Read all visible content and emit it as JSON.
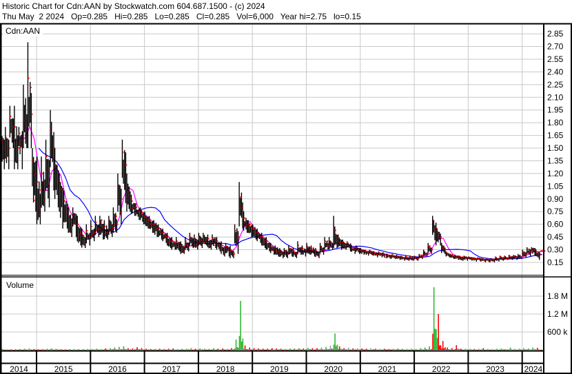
{
  "header": {
    "line1": "Historic Chart for Cdn:AAN by Stockwatch.com 604.687.1500 - (c) 2024",
    "line2": "Thu May  2 2024   Op=0.285   Hi=0.285   Lo=0.285   Cl=0.285   Vol=6,000   Year hi=2.75   lo=0.15"
  },
  "chart_data": {
    "type": "ohlc-bar",
    "symbol_label": "Cdn:AAN",
    "volume_label": "Volume",
    "grid": true,
    "colors": {
      "bar": "#000000",
      "close_tick": "#ff0000",
      "ma_short": "#ff00ff",
      "ma_long": "#0000ff",
      "vol_up": "#33b833",
      "vol_down": "#ff0000",
      "vol_flat": "#a0a0a0",
      "grid": "#c8c8c8"
    },
    "price_axis": {
      "ylim": [
        0.15,
        2.85
      ],
      "ticks": [
        "2.85",
        "2.70",
        "2.55",
        "2.40",
        "2.25",
        "2.10",
        "1.95",
        "1.80",
        "1.65",
        "1.50",
        "1.35",
        "1.20",
        "1.05",
        "0.90",
        "0.75",
        "0.60",
        "0.45",
        "0.30",
        "0.15"
      ]
    },
    "volume_axis": {
      "ticks": [
        {
          "label": "1.8 M",
          "value": 1800000
        },
        {
          "label": "1.2 M",
          "value": 1200000
        },
        {
          "label": "600 k",
          "value": 600000
        }
      ]
    },
    "years": [
      "2014",
      "2015",
      "2016",
      "2017",
      "2018",
      "2019",
      "2020",
      "2021",
      "2022",
      "2023",
      "2024"
    ],
    "first_month": "2014-05",
    "close": [
      1.5,
      1.5,
      1.75,
      1.5,
      1.6,
      1.75,
      1.9,
      1.2,
      0.8,
      1.0,
      1.2,
      1.5,
      1.1,
      0.9,
      0.75,
      0.6,
      0.65,
      0.5,
      0.4,
      0.45,
      0.5,
      0.55,
      0.55,
      0.5,
      0.55,
      0.6,
      0.9,
      1.3,
      0.9,
      0.8,
      0.75,
      0.7,
      0.65,
      0.6,
      0.55,
      0.5,
      0.45,
      0.4,
      0.35,
      0.35,
      0.3,
      0.35,
      0.4,
      0.38,
      0.4,
      0.42,
      0.38,
      0.4,
      0.35,
      0.3,
      0.3,
      0.25,
      0.45,
      0.75,
      0.6,
      0.55,
      0.5,
      0.45,
      0.4,
      0.35,
      0.3,
      0.28,
      0.25,
      0.25,
      0.28,
      0.25,
      0.3,
      0.28,
      0.3,
      0.28,
      0.25,
      0.3,
      0.35,
      0.35,
      0.4,
      0.38,
      0.35,
      0.35,
      0.3,
      0.3,
      0.28,
      0.27,
      0.27,
      0.25,
      0.25,
      0.24,
      0.22,
      0.22,
      0.21,
      0.2,
      0.2,
      0.2,
      0.2,
      0.22,
      0.25,
      0.3,
      0.55,
      0.45,
      0.3,
      0.24,
      0.22,
      0.21,
      0.2,
      0.2,
      0.2,
      0.19,
      0.19,
      0.18,
      0.18,
      0.18,
      0.19,
      0.2,
      0.2,
      0.21,
      0.21,
      0.21,
      0.25,
      0.28,
      0.3,
      0.25,
      0.285
    ],
    "high": [
      1.75,
      1.75,
      2.0,
      2.0,
      1.75,
      2.25,
      2.75,
      1.5,
      1.4,
      1.4,
      1.6,
      1.95,
      1.5,
      1.2,
      1.0,
      0.8,
      0.8,
      0.7,
      0.55,
      0.6,
      0.65,
      0.7,
      0.7,
      0.65,
      0.7,
      0.8,
      1.2,
      1.6,
      1.2,
      0.95,
      0.85,
      0.8,
      0.75,
      0.7,
      0.65,
      0.6,
      0.55,
      0.5,
      0.45,
      0.45,
      0.4,
      0.45,
      0.5,
      0.48,
      0.5,
      0.5,
      0.48,
      0.48,
      0.45,
      0.4,
      0.38,
      0.35,
      0.6,
      1.1,
      0.75,
      0.65,
      0.6,
      0.55,
      0.5,
      0.45,
      0.38,
      0.35,
      0.32,
      0.32,
      0.35,
      0.32,
      0.4,
      0.35,
      0.38,
      0.35,
      0.32,
      0.38,
      0.45,
      0.45,
      0.7,
      0.48,
      0.42,
      0.4,
      0.35,
      0.35,
      0.32,
      0.3,
      0.3,
      0.28,
      0.28,
      0.27,
      0.25,
      0.25,
      0.24,
      0.23,
      0.23,
      0.23,
      0.23,
      0.25,
      0.3,
      0.38,
      0.7,
      0.55,
      0.38,
      0.28,
      0.25,
      0.24,
      0.23,
      0.23,
      0.22,
      0.21,
      0.21,
      0.2,
      0.2,
      0.2,
      0.22,
      0.23,
      0.23,
      0.24,
      0.24,
      0.25,
      0.3,
      0.33,
      0.33,
      0.3,
      0.285
    ],
    "low": [
      1.25,
      1.25,
      1.5,
      1.25,
      1.25,
      1.5,
      1.5,
      0.75,
      0.6,
      0.75,
      0.8,
      1.0,
      0.8,
      0.55,
      0.55,
      0.45,
      0.45,
      0.35,
      0.32,
      0.35,
      0.4,
      0.45,
      0.42,
      0.42,
      0.45,
      0.5,
      0.6,
      0.85,
      0.75,
      0.7,
      0.65,
      0.6,
      0.55,
      0.5,
      0.45,
      0.42,
      0.38,
      0.32,
      0.3,
      0.28,
      0.25,
      0.28,
      0.32,
      0.3,
      0.32,
      0.35,
      0.3,
      0.32,
      0.28,
      0.22,
      0.22,
      0.2,
      0.25,
      0.55,
      0.5,
      0.45,
      0.42,
      0.38,
      0.32,
      0.28,
      0.24,
      0.22,
      0.2,
      0.2,
      0.22,
      0.2,
      0.24,
      0.22,
      0.24,
      0.22,
      0.2,
      0.24,
      0.3,
      0.3,
      0.32,
      0.3,
      0.3,
      0.28,
      0.25,
      0.25,
      0.24,
      0.23,
      0.23,
      0.21,
      0.21,
      0.2,
      0.19,
      0.19,
      0.18,
      0.17,
      0.17,
      0.17,
      0.17,
      0.19,
      0.22,
      0.25,
      0.35,
      0.35,
      0.25,
      0.21,
      0.19,
      0.18,
      0.17,
      0.17,
      0.17,
      0.16,
      0.16,
      0.15,
      0.15,
      0.15,
      0.16,
      0.17,
      0.18,
      0.18,
      0.18,
      0.19,
      0.21,
      0.22,
      0.23,
      0.18,
      0.285
    ],
    "volume": [
      30000,
      20000,
      25000,
      20000,
      30000,
      40000,
      50000,
      30000,
      20000,
      30000,
      40000,
      50000,
      30000,
      20000,
      20000,
      20000,
      30000,
      20000,
      20000,
      30000,
      30000,
      40000,
      30000,
      50000,
      60000,
      80000,
      100000,
      120000,
      60000,
      50000,
      90000,
      60000,
      40000,
      30000,
      30000,
      40000,
      30000,
      40000,
      50000,
      30000,
      30000,
      40000,
      60000,
      40000,
      50000,
      40000,
      30000,
      60000,
      40000,
      50000,
      40000,
      60000,
      350000,
      1640000,
      150000,
      80000,
      60000,
      50000,
      40000,
      40000,
      60000,
      50000,
      40000,
      40000,
      50000,
      40000,
      60000,
      50000,
      70000,
      60000,
      60000,
      80000,
      100000,
      150000,
      550000,
      120000,
      60000,
      80000,
      50000,
      60000,
      50000,
      40000,
      60000,
      40000,
      40000,
      40000,
      30000,
      40000,
      40000,
      30000,
      40000,
      50000,
      40000,
      60000,
      80000,
      120000,
      2100000,
      1200000,
      300000,
      80000,
      60000,
      160000,
      40000,
      50000,
      40000,
      30000,
      40000,
      60000,
      40000,
      30000,
      40000,
      50000,
      30000,
      80000,
      40000,
      50000,
      60000,
      50000,
      80000,
      70000,
      6000
    ]
  }
}
